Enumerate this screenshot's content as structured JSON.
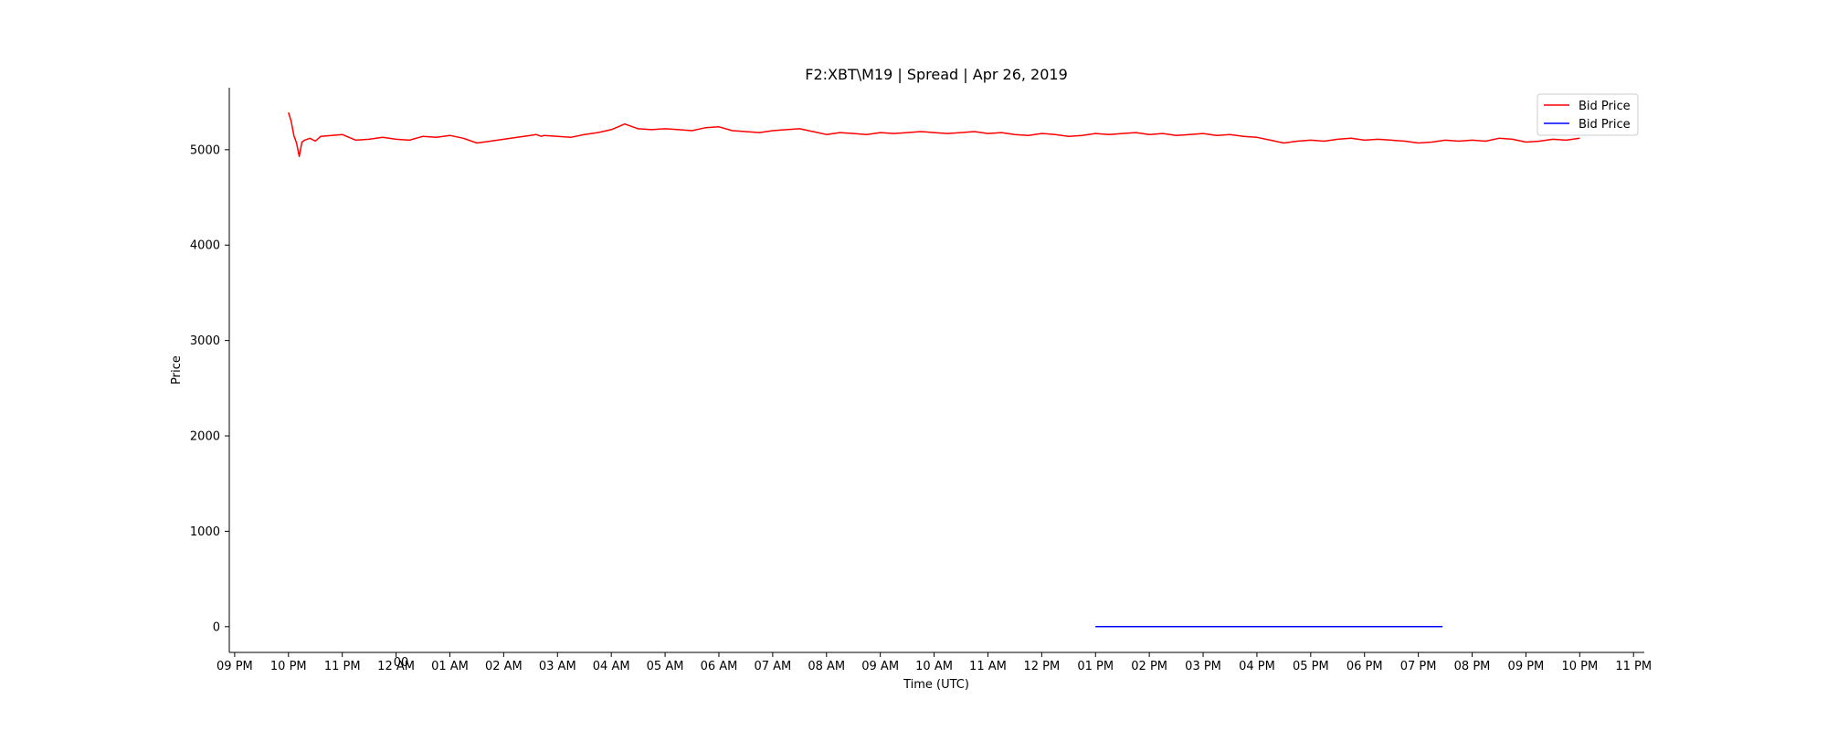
{
  "chart_data": {
    "type": "line",
    "title": "F2:XBT\\M19 | Spread | Apr 26, 2019",
    "xlabel": "Time (UTC)",
    "ylabel": "Price",
    "x_tick_labels": [
      "09 PM",
      "10 PM",
      "11 PM",
      "12 AM",
      "01 AM",
      "02 AM",
      "03 AM",
      "04 AM",
      "05 AM",
      "06 AM",
      "07 AM",
      "08 AM",
      "09 AM",
      "10 AM",
      "11 AM",
      "12 PM",
      "01 PM",
      "02 PM",
      "03 PM",
      "04 PM",
      "05 PM",
      "06 PM",
      "07 PM",
      "08 PM",
      "09 PM",
      "10 PM",
      "11 PM"
    ],
    "x_extra_label": "00",
    "y_ticks": [
      0,
      1000,
      2000,
      3000,
      4000,
      5000
    ],
    "ylim": [
      -270,
      5650
    ],
    "xlim_hours": [
      20.9,
      47.2
    ],
    "grid": false,
    "legend_position": "top-right",
    "colors": {
      "series_1": "#ff0000",
      "series_2": "#0000ff"
    },
    "series": [
      {
        "name": "Bid Price",
        "color": "#ff0000",
        "x_hours": [
          22.0,
          22.05,
          22.1,
          22.15,
          22.2,
          22.25,
          22.3,
          22.4,
          22.5,
          22.6,
          22.8,
          23.0,
          23.25,
          23.5,
          23.75,
          24.0,
          24.25,
          24.5,
          24.75,
          25.0,
          25.25,
          25.5,
          25.75,
          26.0,
          26.25,
          26.5,
          26.6,
          26.7,
          26.75,
          27.0,
          27.25,
          27.5,
          27.75,
          28.0,
          28.25,
          28.5,
          28.75,
          29.0,
          29.25,
          29.5,
          29.75,
          30.0,
          30.25,
          30.5,
          30.75,
          31.0,
          31.25,
          31.5,
          31.75,
          32.0,
          32.25,
          32.5,
          32.75,
          33.0,
          33.25,
          33.5,
          33.75,
          34.0,
          34.25,
          34.5,
          34.75,
          35.0,
          35.25,
          35.5,
          35.75,
          36.0,
          36.25,
          36.5,
          36.75,
          37.0,
          37.25,
          37.5,
          37.75,
          38.0,
          38.25,
          38.5,
          38.75,
          39.0,
          39.25,
          39.5,
          39.75,
          40.0,
          40.25,
          40.5,
          40.75,
          41.0,
          41.25,
          41.5,
          41.75,
          42.0,
          42.25,
          42.5,
          42.75,
          43.0,
          43.25,
          43.5,
          43.75,
          44.0,
          44.25,
          44.5,
          44.75,
          45.0,
          45.25,
          45.5,
          45.75,
          46.0
        ],
        "values": [
          5390,
          5300,
          5150,
          5070,
          4930,
          5080,
          5100,
          5120,
          5090,
          5140,
          5150,
          5160,
          5100,
          5110,
          5130,
          5110,
          5100,
          5140,
          5130,
          5150,
          5120,
          5070,
          5090,
          5110,
          5130,
          5150,
          5160,
          5140,
          5150,
          5140,
          5130,
          5160,
          5180,
          5210,
          5270,
          5220,
          5210,
          5220,
          5210,
          5200,
          5230,
          5240,
          5200,
          5190,
          5180,
          5200,
          5210,
          5220,
          5190,
          5160,
          5180,
          5170,
          5160,
          5180,
          5170,
          5180,
          5190,
          5180,
          5170,
          5180,
          5190,
          5170,
          5180,
          5160,
          5150,
          5170,
          5160,
          5140,
          5150,
          5170,
          5160,
          5170,
          5180,
          5160,
          5170,
          5150,
          5160,
          5170,
          5150,
          5160,
          5140,
          5130,
          5100,
          5070,
          5090,
          5100,
          5090,
          5110,
          5120,
          5100,
          5110,
          5100,
          5090,
          5070,
          5080,
          5100,
          5090,
          5100,
          5090,
          5120,
          5110,
          5080,
          5090,
          5110,
          5100,
          5120
        ]
      },
      {
        "name": "Bid Price",
        "color": "#0000ff",
        "x_hours": [
          37.0,
          43.45
        ],
        "values": [
          0,
          0
        ]
      }
    ]
  }
}
